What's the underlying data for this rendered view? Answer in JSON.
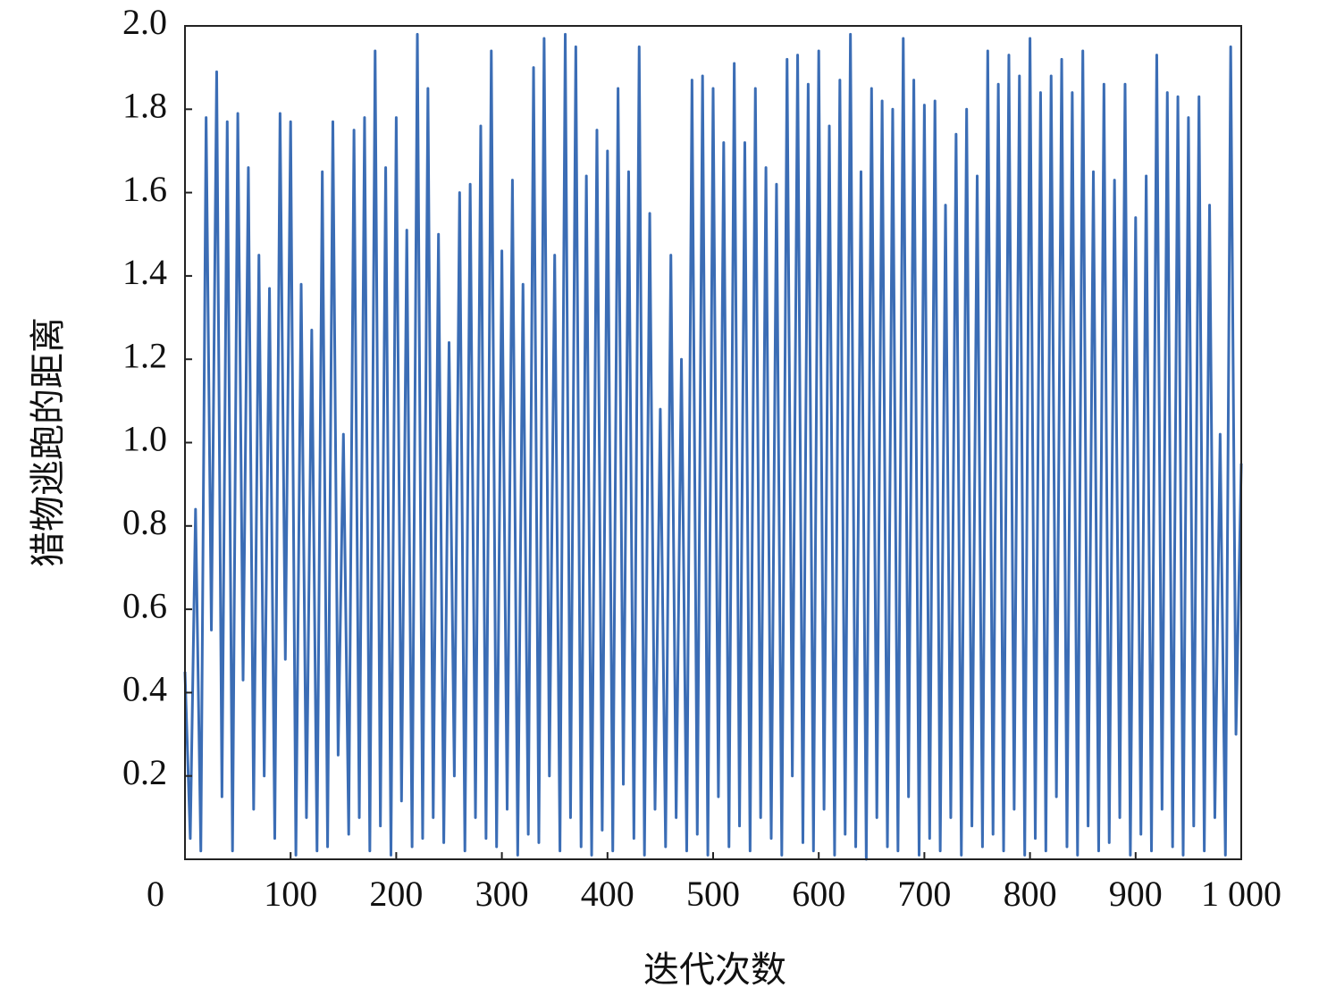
{
  "chart_data": {
    "type": "line",
    "xlabel": "迭代次数",
    "ylabel": "猎物逃跑的距离",
    "x": [
      0,
      5,
      10,
      15,
      20,
      25,
      30,
      35,
      40,
      45,
      50,
      55,
      60,
      65,
      70,
      75,
      80,
      85,
      90,
      95,
      100,
      105,
      110,
      115,
      120,
      125,
      130,
      135,
      140,
      145,
      150,
      155,
      160,
      165,
      170,
      175,
      180,
      185,
      190,
      195,
      200,
      205,
      210,
      215,
      220,
      225,
      230,
      235,
      240,
      245,
      250,
      255,
      260,
      265,
      270,
      275,
      280,
      285,
      290,
      295,
      300,
      305,
      310,
      315,
      320,
      325,
      330,
      335,
      340,
      345,
      350,
      355,
      360,
      365,
      370,
      375,
      380,
      385,
      390,
      395,
      400,
      405,
      410,
      415,
      420,
      425,
      430,
      435,
      440,
      445,
      450,
      455,
      460,
      465,
      470,
      475,
      480,
      485,
      490,
      495,
      500,
      505,
      510,
      515,
      520,
      525,
      530,
      535,
      540,
      545,
      550,
      555,
      560,
      565,
      570,
      575,
      580,
      585,
      590,
      595,
      600,
      605,
      610,
      615,
      620,
      625,
      630,
      635,
      640,
      645,
      650,
      655,
      660,
      665,
      670,
      675,
      680,
      685,
      690,
      695,
      700,
      705,
      710,
      715,
      720,
      725,
      730,
      735,
      740,
      745,
      750,
      755,
      760,
      765,
      770,
      775,
      780,
      785,
      790,
      795,
      800,
      805,
      810,
      815,
      820,
      825,
      830,
      835,
      840,
      845,
      850,
      855,
      860,
      865,
      870,
      875,
      880,
      885,
      890,
      895,
      900,
      905,
      910,
      915,
      920,
      925,
      930,
      935,
      940,
      945,
      950,
      955,
      960,
      965,
      970,
      975,
      980,
      985,
      990,
      995,
      1000
    ],
    "series": [
      {
        "color": "#3b6db5",
        "values": [
          0.45,
          0.05,
          0.84,
          0.02,
          1.78,
          0.55,
          1.89,
          0.15,
          1.77,
          0.02,
          1.79,
          0.43,
          1.66,
          0.12,
          1.45,
          0.2,
          1.37,
          0.05,
          1.79,
          0.48,
          1.77,
          0.01,
          1.38,
          0.1,
          1.27,
          0.02,
          1.65,
          0.03,
          1.77,
          0.25,
          1.02,
          0.06,
          1.75,
          0.1,
          1.78,
          0.02,
          1.94,
          0.08,
          1.66,
          0.01,
          1.78,
          0.14,
          1.51,
          0.03,
          1.98,
          0.05,
          1.85,
          0.1,
          1.5,
          0.04,
          1.24,
          0.2,
          1.6,
          0.02,
          1.62,
          0.1,
          1.76,
          0.05,
          1.94,
          0.03,
          1.46,
          0.12,
          1.63,
          0.01,
          1.38,
          0.06,
          1.9,
          0.04,
          1.97,
          0.2,
          1.45,
          0.02,
          1.98,
          0.1,
          1.95,
          0.03,
          1.64,
          0.01,
          1.75,
          0.07,
          1.7,
          0.02,
          1.85,
          0.18,
          1.65,
          0.05,
          1.95,
          0.01,
          1.55,
          0.12,
          1.08,
          0.03,
          1.45,
          0.1,
          1.2,
          0.02,
          1.87,
          0.06,
          1.88,
          0.01,
          1.85,
          0.15,
          1.72,
          0.03,
          1.91,
          0.08,
          1.72,
          0.02,
          1.85,
          0.1,
          1.66,
          0.05,
          1.62,
          0.01,
          1.92,
          0.2,
          1.93,
          0.04,
          1.86,
          0.02,
          1.94,
          0.12,
          1.76,
          0.01,
          1.87,
          0.06,
          1.98,
          0.03,
          1.65,
          0.0,
          1.85,
          0.1,
          1.82,
          0.03,
          1.8,
          0.02,
          1.97,
          0.15,
          1.87,
          0.01,
          1.81,
          0.05,
          1.82,
          0.02,
          1.57,
          0.1,
          1.74,
          0.01,
          1.8,
          0.08,
          1.64,
          0.03,
          1.94,
          0.06,
          1.86,
          0.02,
          1.93,
          0.12,
          1.88,
          0.01,
          1.97,
          0.05,
          1.84,
          0.02,
          1.88,
          0.15,
          1.92,
          0.03,
          1.84,
          0.01,
          1.94,
          0.08,
          1.65,
          0.02,
          1.86,
          0.04,
          1.63,
          0.1,
          1.86,
          0.01,
          1.54,
          0.06,
          1.64,
          0.02,
          1.93,
          0.12,
          1.84,
          0.03,
          1.83,
          0.01,
          1.78,
          0.08,
          1.83,
          0.02,
          1.57,
          0.1,
          1.02,
          0.01,
          1.95,
          0.3,
          0.95
        ]
      }
    ],
    "xlim": [
      0,
      1000
    ],
    "xticks": [
      0,
      100,
      200,
      300,
      400,
      500,
      600,
      700,
      800,
      900,
      {
        "value": 1000,
        "label": "1 000"
      }
    ],
    "ylim": [
      0,
      2
    ],
    "yticks": [
      0.2,
      0.4,
      0.6,
      0.8,
      {
        "value": 1,
        "label": "1.0"
      },
      1.2,
      1.4,
      1.6,
      1.8,
      {
        "value": 2,
        "label": "2.0"
      }
    ]
  }
}
